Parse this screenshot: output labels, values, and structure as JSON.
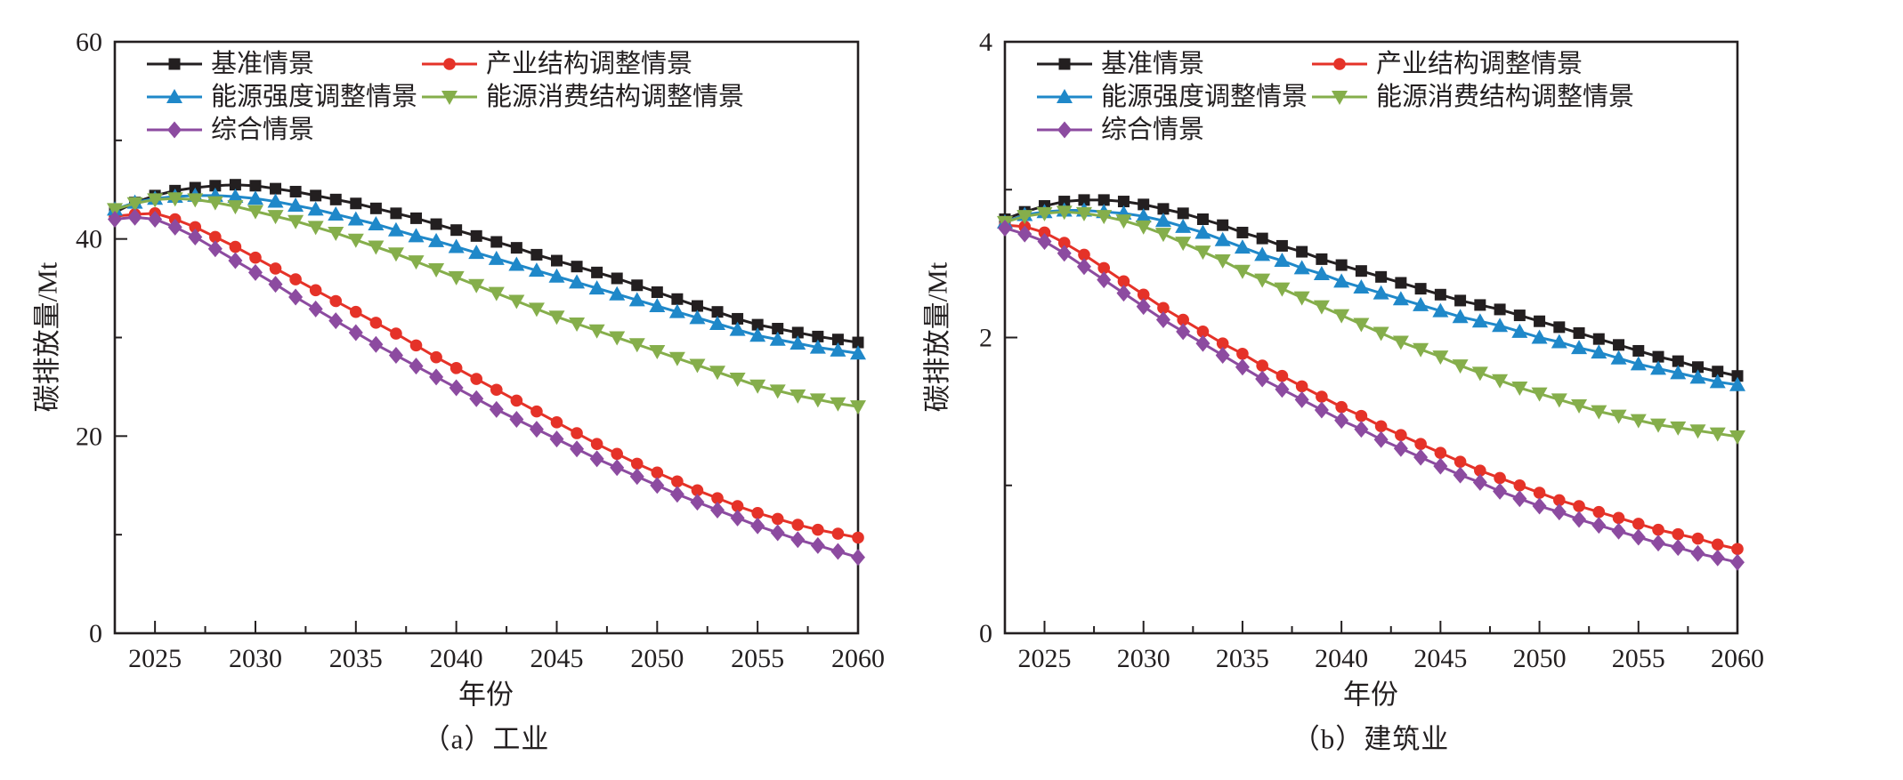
{
  "figure_caption_a": "（a）工业",
  "figure_caption_b": "（b）建筑业",
  "chart_data": [
    {
      "type": "line",
      "title": "（a）工业",
      "xlabel": "年份",
      "ylabel": "碳排放量/Mt",
      "xlim": [
        2023,
        2060
      ],
      "ylim": [
        0,
        60
      ],
      "xticks": [
        2025,
        2030,
        2035,
        2040,
        2045,
        2050,
        2055,
        2060
      ],
      "xticks_minor": [
        2027.5,
        2032.5,
        2037.5,
        2042.5,
        2047.5,
        2052.5,
        2057.5
      ],
      "yticks": [
        0,
        20,
        40,
        60
      ],
      "yticks_minor": [
        10,
        30,
        50
      ],
      "grid": false,
      "legend_position": "upper-left",
      "x_start": 2023,
      "x_step": 1,
      "series": [
        {
          "name": "基准情景",
          "marker": "square",
          "color": "#231f20",
          "values": [
            42.7,
            43.7,
            44.4,
            44.9,
            45.2,
            45.4,
            45.5,
            45.4,
            45.1,
            44.8,
            44.4,
            44.0,
            43.6,
            43.1,
            42.6,
            42.1,
            41.5,
            40.9,
            40.3,
            39.7,
            39.1,
            38.4,
            37.8,
            37.2,
            36.6,
            36.0,
            35.3,
            34.6,
            33.9,
            33.2,
            32.6,
            31.9,
            31.3,
            30.9,
            30.5,
            30.1,
            29.8,
            29.5
          ]
        },
        {
          "name": "产业结构调整情景",
          "marker": "circle",
          "color": "#e53228",
          "values": [
            42.3,
            42.5,
            42.6,
            42.0,
            41.2,
            40.2,
            39.2,
            38.1,
            37.0,
            35.9,
            34.8,
            33.7,
            32.6,
            31.5,
            30.4,
            29.2,
            28.0,
            26.9,
            25.8,
            24.7,
            23.6,
            22.5,
            21.4,
            20.3,
            19.2,
            18.2,
            17.2,
            16.3,
            15.4,
            14.5,
            13.7,
            12.9,
            12.2,
            11.6,
            11.0,
            10.5,
            10.1,
            9.7
          ]
        },
        {
          "name": "能源强度调整情景",
          "marker": "triangle-up",
          "color": "#1f88c9",
          "values": [
            43.0,
            43.7,
            44.1,
            44.3,
            44.4,
            44.4,
            44.3,
            44.1,
            43.8,
            43.4,
            43.0,
            42.5,
            42.0,
            41.5,
            40.9,
            40.3,
            39.8,
            39.2,
            38.6,
            38.0,
            37.4,
            36.8,
            36.2,
            35.6,
            35.0,
            34.4,
            33.8,
            33.2,
            32.6,
            32.0,
            31.4,
            30.8,
            30.2,
            29.8,
            29.4,
            29.0,
            28.7,
            28.4
          ]
        },
        {
          "name": "能源消费结构调整情景",
          "marker": "triangle-down",
          "color": "#85ae4b",
          "values": [
            43.0,
            43.6,
            44.0,
            44.1,
            44.0,
            43.7,
            43.3,
            42.8,
            42.3,
            41.8,
            41.2,
            40.6,
            39.9,
            39.2,
            38.5,
            37.7,
            36.9,
            36.1,
            35.3,
            34.5,
            33.7,
            32.9,
            32.1,
            31.4,
            30.7,
            30.0,
            29.3,
            28.6,
            27.9,
            27.2,
            26.5,
            25.8,
            25.1,
            24.6,
            24.1,
            23.7,
            23.3,
            23.0
          ]
        },
        {
          "name": "综合情景",
          "marker": "diamond",
          "color": "#8c4ba0",
          "values": [
            42.0,
            42.2,
            42.0,
            41.2,
            40.2,
            39.0,
            37.8,
            36.6,
            35.4,
            34.1,
            32.9,
            31.7,
            30.5,
            29.3,
            28.2,
            27.1,
            26.0,
            24.9,
            23.8,
            22.7,
            21.7,
            20.7,
            19.7,
            18.7,
            17.7,
            16.8,
            15.9,
            15.0,
            14.1,
            13.3,
            12.5,
            11.7,
            10.9,
            10.2,
            9.5,
            8.9,
            8.3,
            7.7
          ]
        }
      ]
    },
    {
      "type": "line",
      "title": "（b）建筑业",
      "xlabel": "年份",
      "ylabel": "碳排放量/Mt",
      "xlim": [
        2023,
        2060
      ],
      "ylim": [
        0,
        4
      ],
      "xticks": [
        2025,
        2030,
        2035,
        2040,
        2045,
        2050,
        2055,
        2060
      ],
      "xticks_minor": [
        2027.5,
        2032.5,
        2037.5,
        2042.5,
        2047.5,
        2052.5,
        2057.5
      ],
      "yticks": [
        0,
        2,
        4
      ],
      "yticks_minor": [
        1,
        3
      ],
      "grid": false,
      "legend_position": "upper-left",
      "x_start": 2023,
      "x_step": 1,
      "series": [
        {
          "name": "基准情景",
          "marker": "square",
          "color": "#231f20",
          "values": [
            2.8,
            2.85,
            2.89,
            2.92,
            2.93,
            2.93,
            2.92,
            2.9,
            2.87,
            2.84,
            2.8,
            2.76,
            2.71,
            2.67,
            2.62,
            2.58,
            2.53,
            2.49,
            2.45,
            2.41,
            2.37,
            2.33,
            2.29,
            2.25,
            2.22,
            2.19,
            2.15,
            2.11,
            2.07,
            2.03,
            1.99,
            1.95,
            1.91,
            1.87,
            1.84,
            1.8,
            1.77,
            1.74
          ]
        },
        {
          "name": "产业结构调整情景",
          "marker": "circle",
          "color": "#e53228",
          "values": [
            2.76,
            2.75,
            2.71,
            2.64,
            2.56,
            2.47,
            2.38,
            2.29,
            2.2,
            2.12,
            2.04,
            1.96,
            1.89,
            1.81,
            1.74,
            1.67,
            1.6,
            1.53,
            1.47,
            1.4,
            1.34,
            1.28,
            1.22,
            1.16,
            1.1,
            1.05,
            1.0,
            0.95,
            0.9,
            0.86,
            0.82,
            0.78,
            0.74,
            0.7,
            0.67,
            0.64,
            0.6,
            0.57
          ]
        },
        {
          "name": "能源强度调整情景",
          "marker": "triangle-up",
          "color": "#1f88c9",
          "values": [
            2.78,
            2.83,
            2.85,
            2.86,
            2.86,
            2.85,
            2.84,
            2.82,
            2.79,
            2.75,
            2.71,
            2.66,
            2.61,
            2.56,
            2.52,
            2.47,
            2.43,
            2.38,
            2.34,
            2.3,
            2.26,
            2.22,
            2.18,
            2.14,
            2.11,
            2.08,
            2.04,
            2.0,
            1.97,
            1.93,
            1.9,
            1.86,
            1.82,
            1.79,
            1.76,
            1.73,
            1.7,
            1.68
          ]
        },
        {
          "name": "能源消费结构调整情景",
          "marker": "triangle-down",
          "color": "#85ae4b",
          "values": [
            2.78,
            2.82,
            2.84,
            2.85,
            2.84,
            2.82,
            2.79,
            2.75,
            2.7,
            2.64,
            2.58,
            2.52,
            2.45,
            2.39,
            2.33,
            2.27,
            2.21,
            2.15,
            2.09,
            2.03,
            1.97,
            1.92,
            1.87,
            1.81,
            1.76,
            1.71,
            1.66,
            1.62,
            1.58,
            1.54,
            1.5,
            1.47,
            1.44,
            1.41,
            1.39,
            1.37,
            1.35,
            1.33
          ]
        },
        {
          "name": "综合情景",
          "marker": "diamond",
          "color": "#8c4ba0",
          "values": [
            2.74,
            2.7,
            2.65,
            2.57,
            2.48,
            2.39,
            2.3,
            2.21,
            2.12,
            2.04,
            1.96,
            1.88,
            1.8,
            1.72,
            1.65,
            1.58,
            1.51,
            1.44,
            1.38,
            1.31,
            1.25,
            1.19,
            1.13,
            1.07,
            1.02,
            0.96,
            0.91,
            0.86,
            0.82,
            0.77,
            0.73,
            0.69,
            0.65,
            0.61,
            0.58,
            0.54,
            0.51,
            0.48
          ]
        }
      ]
    }
  ],
  "ink_color": "#231f20"
}
